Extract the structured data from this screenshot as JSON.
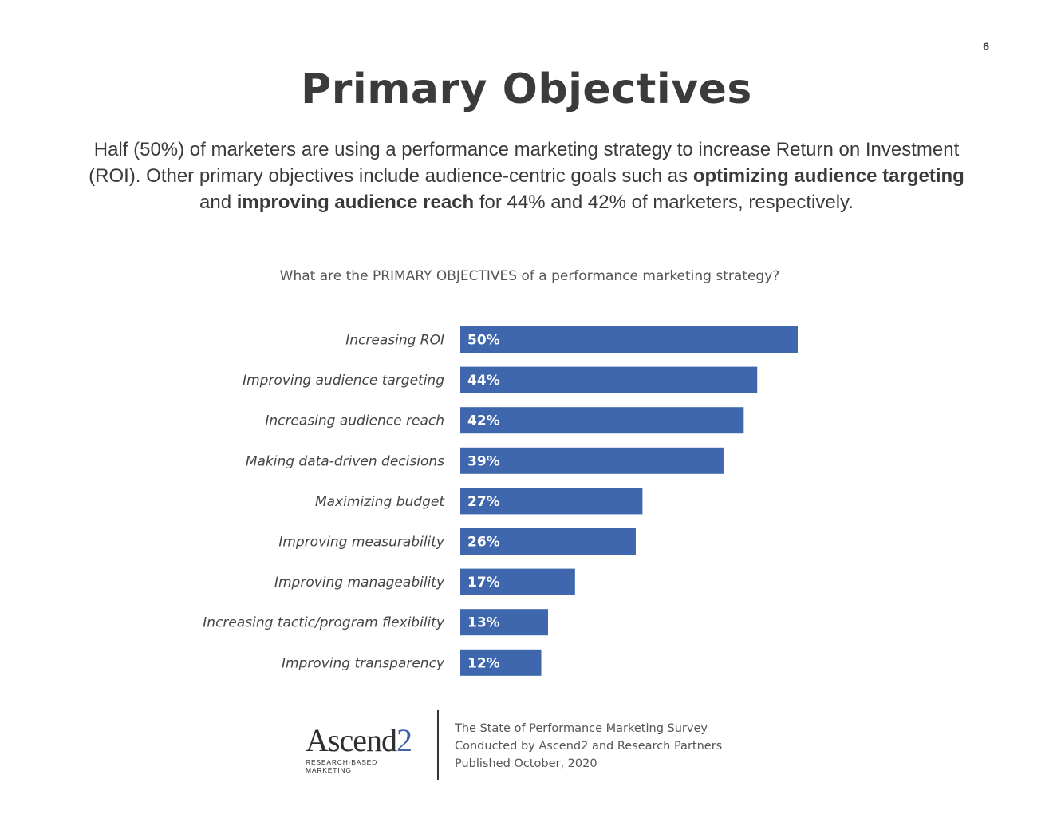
{
  "page_number": "6",
  "title": "Primary Objectives",
  "intro": {
    "part1": "Half (50%) of marketers are using a performance marketing strategy to increase Return on Investment (ROI). Other primary objectives include audience-centric goals such as ",
    "bold1": "optimizing audience targeting",
    "part2": " and ",
    "bold2": "improving audience reach",
    "part3": " for 44% and 42% of marketers, respectively."
  },
  "chart_data": {
    "type": "bar",
    "orientation": "horizontal",
    "title": "What are the PRIMARY OBJECTIVES of a performance marketing strategy?",
    "categories": [
      "Increasing ROI",
      "Improving audience targeting",
      "Increasing audience reach",
      "Making data-driven decisions",
      "Maximizing budget",
      "Improving measurability",
      "Improving manageability",
      "Increasing tactic/program flexibility",
      "Improving transparency"
    ],
    "values": [
      50,
      44,
      42,
      39,
      27,
      26,
      17,
      13,
      12
    ],
    "data_labels": [
      "50%",
      "44%",
      "42%",
      "39%",
      "27%",
      "26%",
      "17%",
      "13%",
      "12%"
    ],
    "xlim": [
      0,
      50
    ],
    "bar_color": "#3f67ad",
    "label_color": "#ffffff",
    "grid": false,
    "legend": "none"
  },
  "footer": {
    "logo_text": "Ascend",
    "logo_accent": "2",
    "logo_tagline": "RESEARCH-BASED MARKETING",
    "line1": "The State of Performance Marketing Survey",
    "line2": "Conducted by Ascend2 and Research Partners",
    "line3": "Published October, 2020"
  },
  "colors": {
    "accent": "#3f67ad",
    "title": "#3b3b3b",
    "text": "#3a3a3a"
  }
}
